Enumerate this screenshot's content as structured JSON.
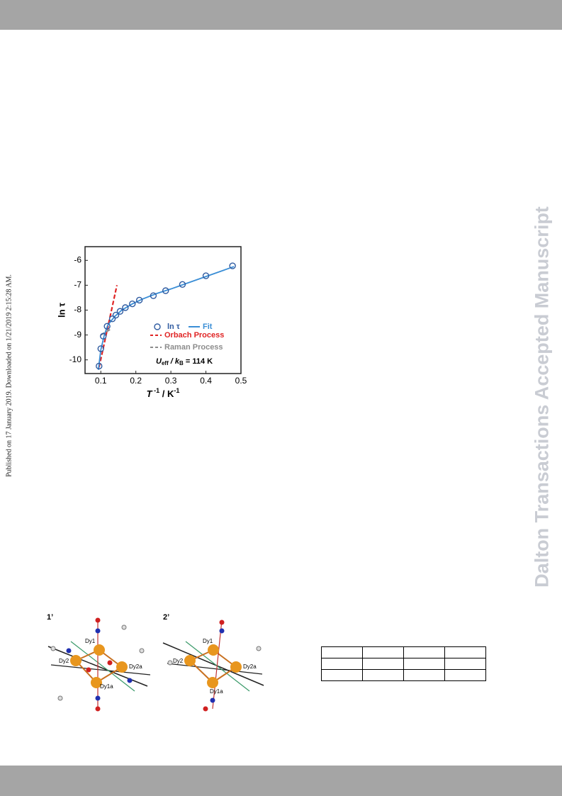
{
  "watermark": "Dalton Transactions Accepted Manuscript",
  "publication_note": "Published on 17 January 2019. Downloaded on 1/21/2019 2:15:28 AM.",
  "figure": {
    "panels": [
      "1’",
      "2’"
    ],
    "atoms": [
      "Dy1",
      "Dy2",
      "Dy2a",
      "Dy1a"
    ]
  },
  "chart_data": {
    "type": "scatter",
    "ylabel": "ln τ",
    "xlabel": {
      "base": "T",
      "sup": " -1",
      "rest": " / K",
      "sup2": "-1"
    },
    "annotation": {
      "u": "U",
      "sub1": "eff",
      "mid": " / k",
      "sub2": "B",
      "end": " = 114 K"
    },
    "xlim": [
      0.055,
      0.5
    ],
    "ylim": [
      -10.55,
      -5.45
    ],
    "xticks": [
      0.1,
      0.2,
      0.3,
      0.4,
      0.5
    ],
    "yticks": [
      -6,
      -7,
      -8,
      -9,
      -10
    ],
    "series": [
      {
        "name": "ln τ",
        "kind": "marker",
        "color": "#2e5aa0",
        "x": [
          0.095,
          0.1,
          0.107,
          0.118,
          0.133,
          0.143,
          0.155,
          0.17,
          0.19,
          0.21,
          0.25,
          0.285,
          0.333,
          0.4,
          0.476
        ],
        "values": [
          -10.25,
          -9.55,
          -9.05,
          -8.65,
          -8.35,
          -8.2,
          -8.05,
          -7.9,
          -7.75,
          -7.6,
          -7.42,
          -7.22,
          -6.97,
          -6.62,
          -6.22
        ]
      },
      {
        "name": "Fit",
        "kind": "solid",
        "color": "#3a8ed6",
        "x": [
          0.093,
          0.1,
          0.11,
          0.12,
          0.14,
          0.16,
          0.19,
          0.22,
          0.26,
          0.3,
          0.35,
          0.4,
          0.45,
          0.48
        ],
        "values": [
          -10.4,
          -9.6,
          -9.0,
          -8.6,
          -8.25,
          -8.0,
          -7.75,
          -7.55,
          -7.33,
          -7.15,
          -6.9,
          -6.65,
          -6.4,
          -6.25
        ]
      },
      {
        "name": "Orbach Process",
        "kind": "dashed",
        "color": "#e02424",
        "x": [
          0.095,
          0.146
        ],
        "values": [
          -10.3,
          -7.0
        ]
      },
      {
        "name": "Raman Process",
        "kind": "dashed",
        "color": "#8c8c8c",
        "x": [
          0.1,
          0.13
        ],
        "values": [
          -9.0,
          -8.75
        ]
      }
    ]
  }
}
